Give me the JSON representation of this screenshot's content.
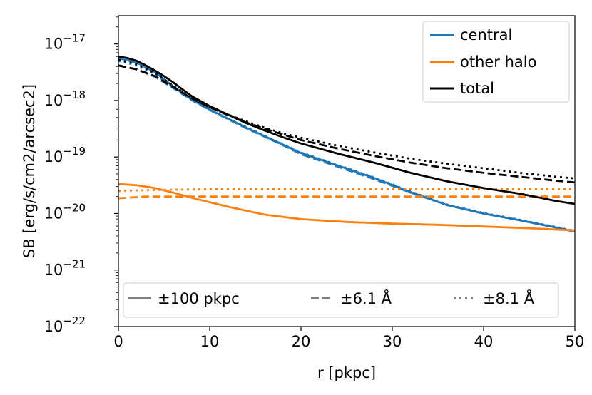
{
  "chart_data": {
    "type": "line",
    "title": "",
    "xlabel": "r [pkpc]",
    "ylabel": "SB [erg/s/cm2/arcsec2]",
    "xlim": [
      0,
      50
    ],
    "ylim_log10": [
      -22,
      -16.5
    ],
    "yscale": "log",
    "grid": false,
    "x_ticks": [
      {
        "value": 0,
        "label": "0"
      },
      {
        "value": 10,
        "label": "10"
      },
      {
        "value": 20,
        "label": "20"
      },
      {
        "value": 30,
        "label": "30"
      },
      {
        "value": 40,
        "label": "40"
      },
      {
        "value": 50,
        "label": "50"
      }
    ],
    "y_ticks": [
      {
        "exp": -17,
        "base": "10",
        "power": "−17"
      },
      {
        "exp": -18,
        "base": "10",
        "power": "−18"
      },
      {
        "exp": -19,
        "base": "10",
        "power": "−19"
      },
      {
        "exp": -20,
        "base": "10",
        "power": "−20"
      },
      {
        "exp": -21,
        "base": "10",
        "power": "−21"
      },
      {
        "exp": -22,
        "base": "10",
        "power": "−22"
      }
    ],
    "colors": {
      "central": "#1f77b4",
      "other_halo": "#ff7f0e",
      "total": "#000000",
      "style_legend": "#808080"
    },
    "legend_components": {
      "location": "top-right",
      "entries": [
        {
          "key": "central",
          "label": "central"
        },
        {
          "key": "other_halo",
          "label": "other halo"
        },
        {
          "key": "total",
          "label": "total"
        }
      ]
    },
    "legend_styles": {
      "location": "bottom",
      "entries": [
        {
          "style": "solid",
          "label": "±100 pkpc"
        },
        {
          "style": "dashed",
          "label": "±6.1 Å"
        },
        {
          "style": "dotted",
          "label": "±8.1 Å"
        }
      ]
    },
    "series": [
      {
        "name": "central, ±100 pkpc",
        "component": "central",
        "style": "solid",
        "x": [
          0,
          2,
          4,
          6,
          8,
          10,
          12,
          14,
          16,
          18,
          20,
          24,
          28,
          32,
          36,
          40,
          44,
          48,
          50
        ],
        "y_log10": [
          -17.25,
          -17.33,
          -17.5,
          -17.75,
          -17.98,
          -18.16,
          -18.32,
          -18.48,
          -18.63,
          -18.78,
          -18.93,
          -19.15,
          -19.37,
          -19.62,
          -19.85,
          -20.0,
          -20.12,
          -20.25,
          -20.32
        ]
      },
      {
        "name": "central, ±6.1 Å",
        "component": "central",
        "style": "dashed",
        "x": [
          0,
          2,
          4,
          6,
          8,
          10,
          12,
          14,
          16,
          18,
          20,
          24,
          28,
          32,
          36,
          40,
          44,
          48,
          50
        ],
        "y_log10": [
          -17.38,
          -17.45,
          -17.58,
          -17.78,
          -17.99,
          -18.17,
          -18.33,
          -18.49,
          -18.64,
          -18.79,
          -18.95,
          -19.17,
          -19.39,
          -19.63,
          -19.85,
          -20.0,
          -20.12,
          -20.25,
          -20.32
        ]
      },
      {
        "name": "central, ±8.1 Å",
        "component": "central",
        "style": "dotted",
        "x": [
          0,
          2,
          4,
          6,
          8,
          10,
          12,
          14,
          16,
          18,
          20,
          24,
          28,
          32,
          36,
          40,
          44,
          48,
          50
        ],
        "y_log10": [
          -17.3,
          -17.38,
          -17.53,
          -17.76,
          -17.98,
          -18.16,
          -18.32,
          -18.47,
          -18.62,
          -18.77,
          -18.92,
          -19.14,
          -19.36,
          -19.61,
          -19.84,
          -19.99,
          -20.11,
          -20.24,
          -20.31
        ]
      },
      {
        "name": "other halo, ±100 pkpc",
        "component": "other_halo",
        "style": "solid",
        "x": [
          0,
          2,
          4,
          6,
          8,
          10,
          12,
          14,
          16,
          18,
          20,
          25,
          30,
          35,
          40,
          45,
          50
        ],
        "y_log10": [
          -19.48,
          -19.5,
          -19.55,
          -19.63,
          -19.72,
          -19.8,
          -19.88,
          -19.95,
          -20.02,
          -20.06,
          -20.1,
          -20.15,
          -20.18,
          -20.2,
          -20.23,
          -20.26,
          -20.3
        ]
      },
      {
        "name": "other halo, ±6.1 Å",
        "component": "other_halo",
        "style": "dashed",
        "x": [
          0,
          3,
          6,
          10,
          20,
          30,
          40,
          50
        ],
        "y_log10": [
          -19.73,
          -19.7,
          -19.7,
          -19.7,
          -19.7,
          -19.7,
          -19.7,
          -19.7
        ]
      },
      {
        "name": "other halo, ±8.1 Å",
        "component": "other_halo",
        "style": "dotted",
        "x": [
          0,
          5,
          10,
          20,
          30,
          40,
          50
        ],
        "y_log10": [
          -19.6,
          -19.58,
          -19.57,
          -19.57,
          -19.57,
          -19.57,
          -19.57
        ]
      },
      {
        "name": "total, ±100 pkpc",
        "component": "total",
        "style": "solid",
        "x": [
          0,
          1,
          2,
          3,
          4,
          5,
          6,
          7,
          8,
          10,
          12,
          14,
          16,
          18,
          20,
          24,
          28,
          32,
          36,
          40,
          44,
          48,
          50
        ],
        "y_log10": [
          -17.22,
          -17.25,
          -17.3,
          -17.38,
          -17.47,
          -17.57,
          -17.68,
          -17.8,
          -17.92,
          -18.1,
          -18.25,
          -18.4,
          -18.53,
          -18.65,
          -18.76,
          -18.94,
          -19.1,
          -19.28,
          -19.43,
          -19.55,
          -19.65,
          -19.78,
          -19.83
        ]
      },
      {
        "name": "total, ±6.1 Å",
        "component": "total",
        "style": "dashed",
        "x": [
          0,
          2,
          4,
          6,
          8,
          10,
          12,
          14,
          16,
          18,
          20,
          24,
          28,
          32,
          36,
          40,
          44,
          48,
          50
        ],
        "y_log10": [
          -17.38,
          -17.45,
          -17.57,
          -17.76,
          -17.96,
          -18.12,
          -18.26,
          -18.39,
          -18.5,
          -18.6,
          -18.7,
          -18.85,
          -18.98,
          -19.1,
          -19.2,
          -19.28,
          -19.35,
          -19.42,
          -19.45
        ]
      },
      {
        "name": "total, ±8.1 Å",
        "component": "total",
        "style": "dotted",
        "x": [
          0,
          2,
          4,
          6,
          8,
          10,
          12,
          14,
          16,
          18,
          20,
          24,
          28,
          32,
          36,
          40,
          44,
          48,
          50
        ],
        "y_log10": [
          -17.28,
          -17.36,
          -17.51,
          -17.74,
          -17.95,
          -18.12,
          -18.25,
          -18.37,
          -18.48,
          -18.58,
          -18.66,
          -18.8,
          -18.92,
          -19.03,
          -19.12,
          -19.2,
          -19.28,
          -19.35,
          -19.38
        ]
      }
    ]
  }
}
